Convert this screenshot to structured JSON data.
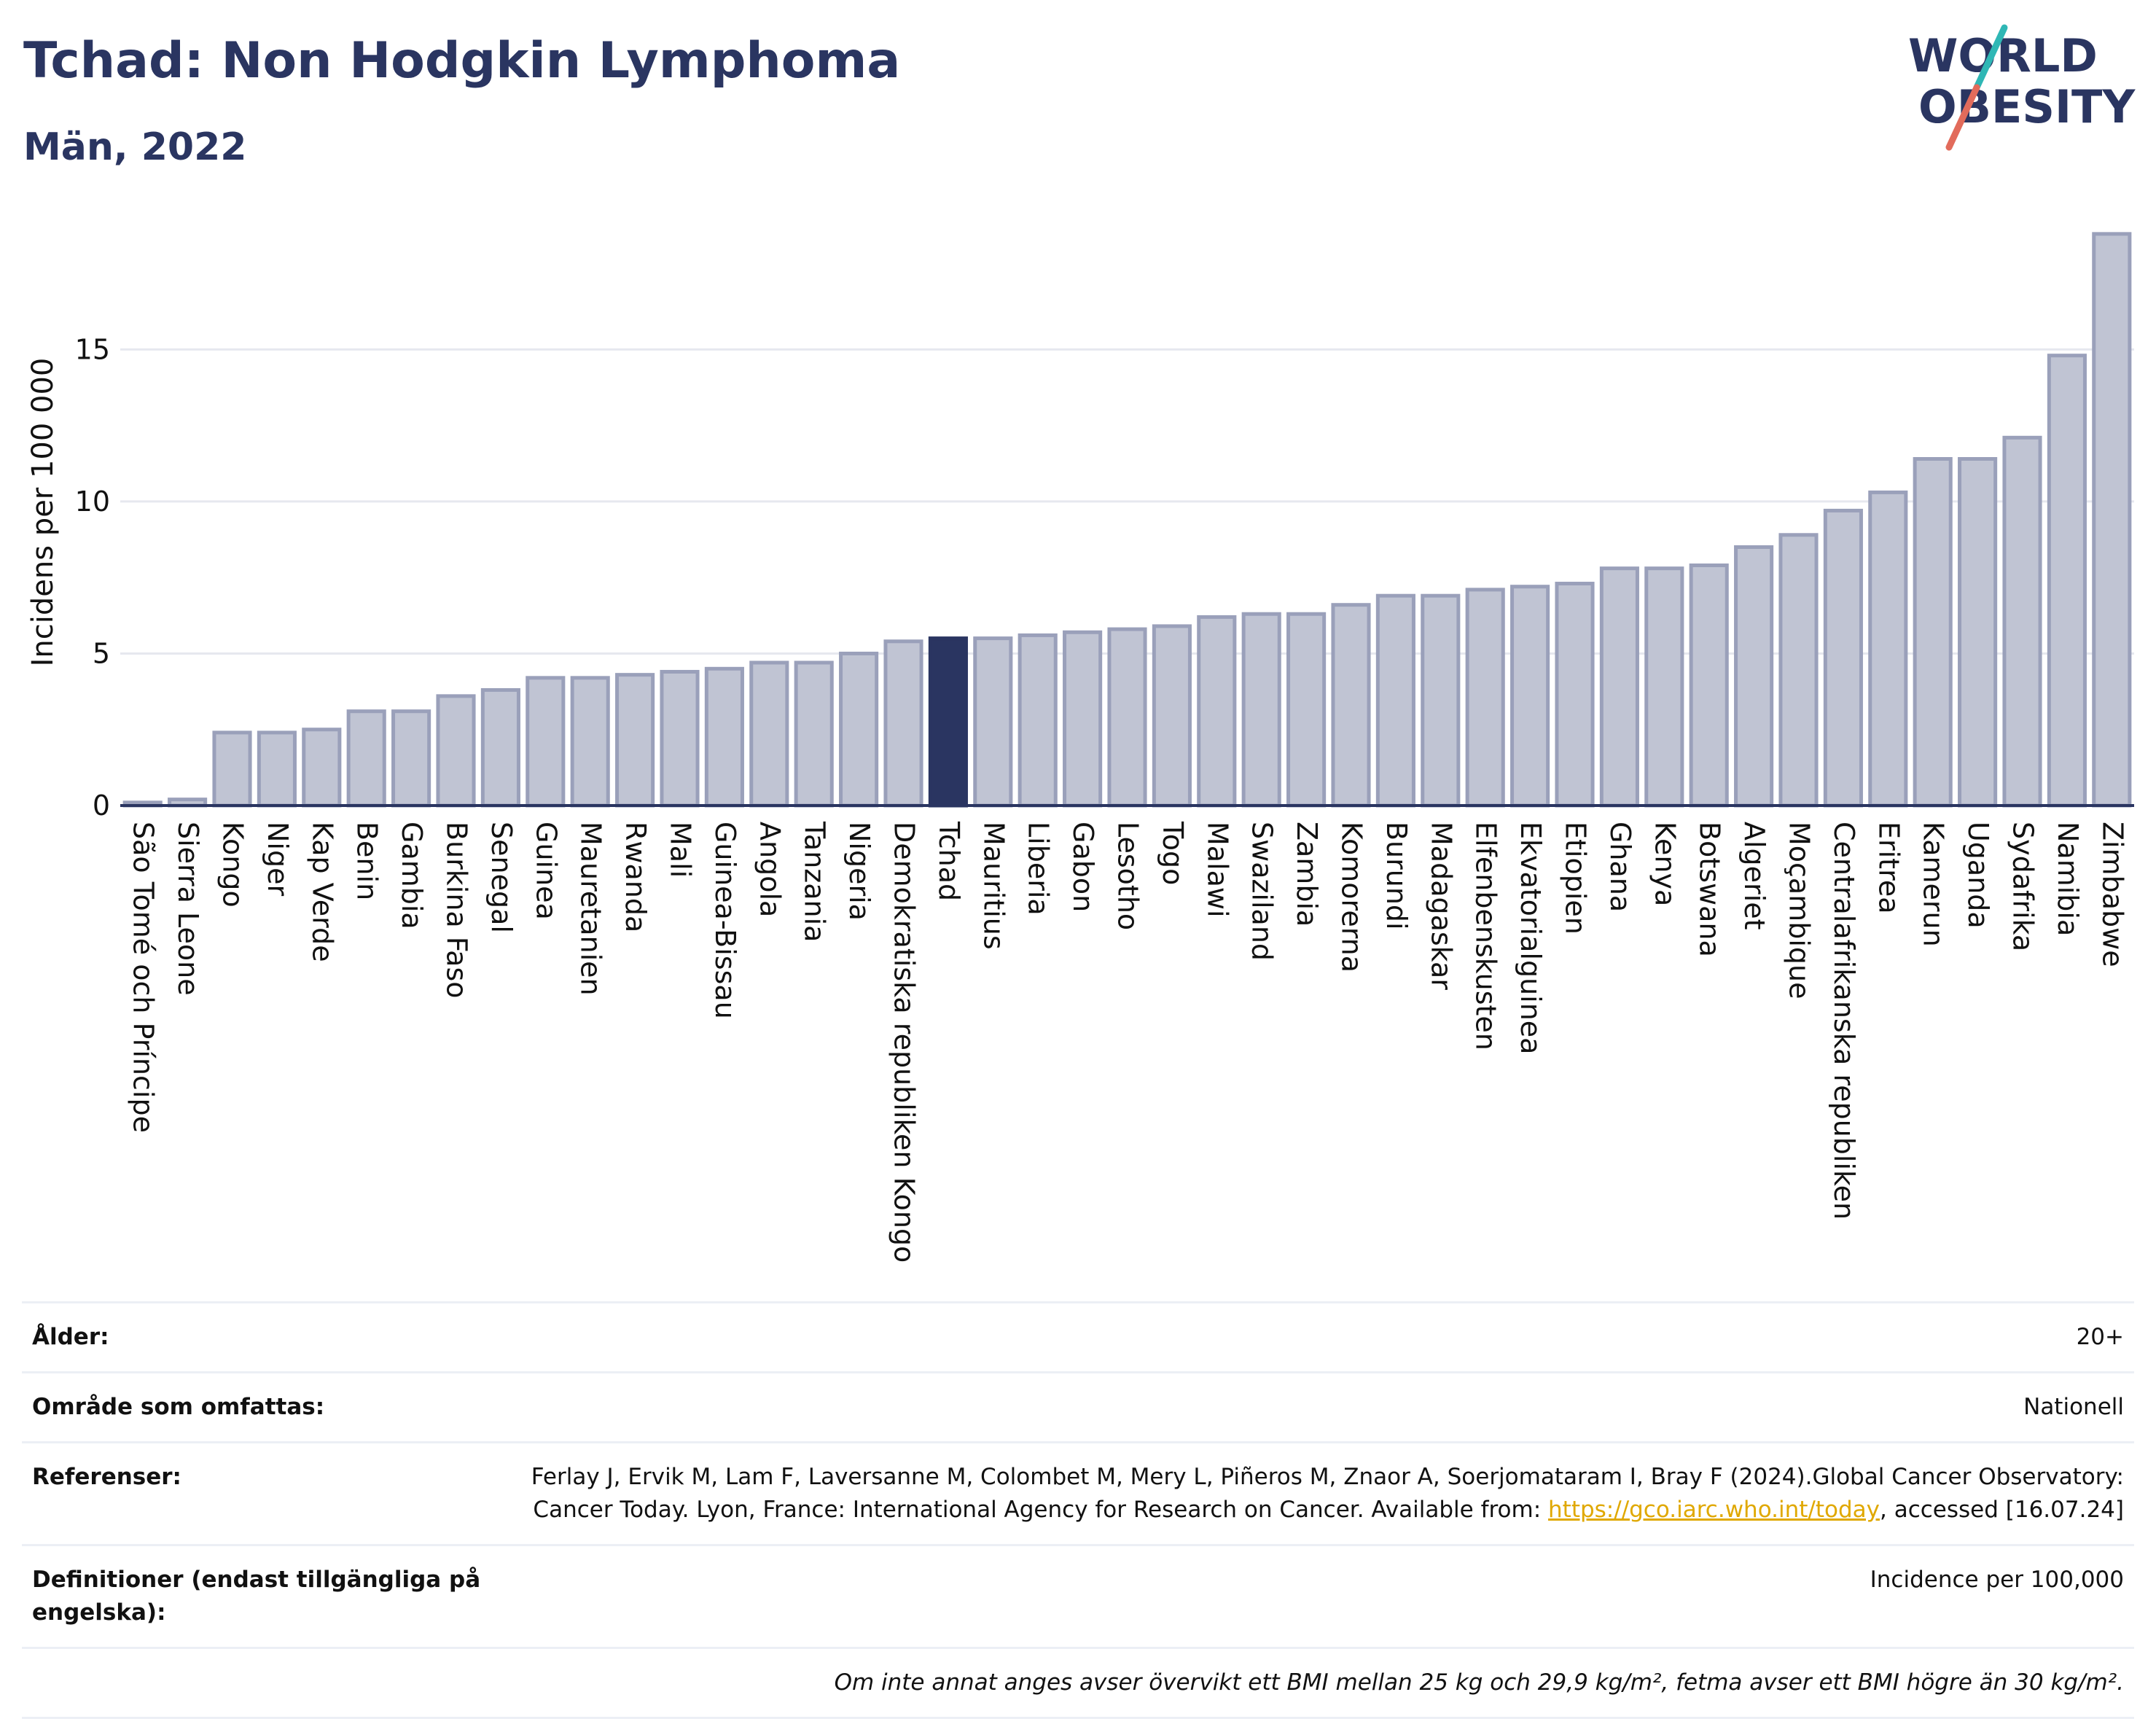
{
  "header": {
    "title": "Tchad: Non Hodgkin Lymphoma",
    "subtitle": "Män, 2022"
  },
  "logo": {
    "text_line1": "WORLD",
    "text_line2": "OBESITY",
    "colors": {
      "text": "#2a3561",
      "slash_top": "#2fb7b5",
      "slash_bottom": "#e26b5b"
    }
  },
  "colors": {
    "bar_fill": "#c0c4d3",
    "bar_stroke": "#9aa0ba",
    "highlight_fill": "#2a3561",
    "axis": "#2a3561",
    "grid": "#e6e8ef"
  },
  "chart_data": {
    "type": "bar",
    "title": "Tchad: Non Hodgkin Lymphoma",
    "subtitle": "Män, 2022",
    "xlabel": "",
    "ylabel": "Incidens per 100 000",
    "ylim": [
      0,
      19.3
    ],
    "yticks": [
      0,
      5,
      10,
      15
    ],
    "grid": true,
    "highlight": "Tchad",
    "categories": [
      "São Tomé och Príncipe",
      "Sierra Leone",
      "Kongo",
      "Niger",
      "Kap Verde",
      "Benin",
      "Gambia",
      "Burkina Faso",
      "Senegal",
      "Guinea",
      "Mauretanien",
      "Rwanda",
      "Mali",
      "Guinea-Bissau",
      "Angola",
      "Tanzania",
      "Nigeria",
      "Demokratiska republiken Kongo",
      "Tchad",
      "Mauritius",
      "Liberia",
      "Gabon",
      "Lesotho",
      "Togo",
      "Malawi",
      "Swaziland",
      "Zambia",
      "Komorerna",
      "Burundi",
      "Madagaskar",
      "Elfenbenskusten",
      "Ekvatorialguinea",
      "Etiopien",
      "Ghana",
      "Kenya",
      "Botswana",
      "Algeriet",
      "Moçambique",
      "Centralafrikanska republiken",
      "Eritrea",
      "Kamerun",
      "Uganda",
      "Sydafrika",
      "Namibia",
      "Zimbabwe"
    ],
    "values": [
      0.1,
      0.2,
      2.4,
      2.4,
      2.5,
      3.1,
      3.1,
      3.6,
      3.8,
      4.2,
      4.2,
      4.3,
      4.4,
      4.5,
      4.7,
      4.7,
      5.0,
      5.4,
      5.5,
      5.5,
      5.6,
      5.7,
      5.8,
      5.9,
      6.2,
      6.3,
      6.3,
      6.6,
      6.9,
      6.9,
      7.1,
      7.2,
      7.3,
      7.8,
      7.8,
      7.9,
      8.5,
      8.9,
      9.7,
      10.3,
      11.4,
      11.4,
      12.1,
      14.8,
      18.8
    ]
  },
  "info": {
    "age_label": "Ålder:",
    "age_value": "20+",
    "area_label": "Område som omfattas:",
    "area_value": "Nationell",
    "references_label": "Referenser:",
    "references_text_1": "Ferlay J, Ervik M, Lam F, Laversanne M, Colombet M, Mery L, Piñeros M, Znaor A, Soerjomataram I, Bray F (2024).Global Cancer Observatory: Cancer Today. Lyon, France: International Agency for Research on Cancer. Available from: ",
    "references_link": "https://gco.iarc.who.int/today",
    "references_text_2": ", accessed [16.07.24]",
    "definitions_label": "Definitioner (endast tillgängliga på engelska):",
    "definitions_value": "Incidence per 100,000",
    "note": "Om inte annat anges avser övervikt ett BMI mellan 25 kg och 29,9 kg/m², fetma avser ett BMI högre än 30 kg/m²."
  }
}
